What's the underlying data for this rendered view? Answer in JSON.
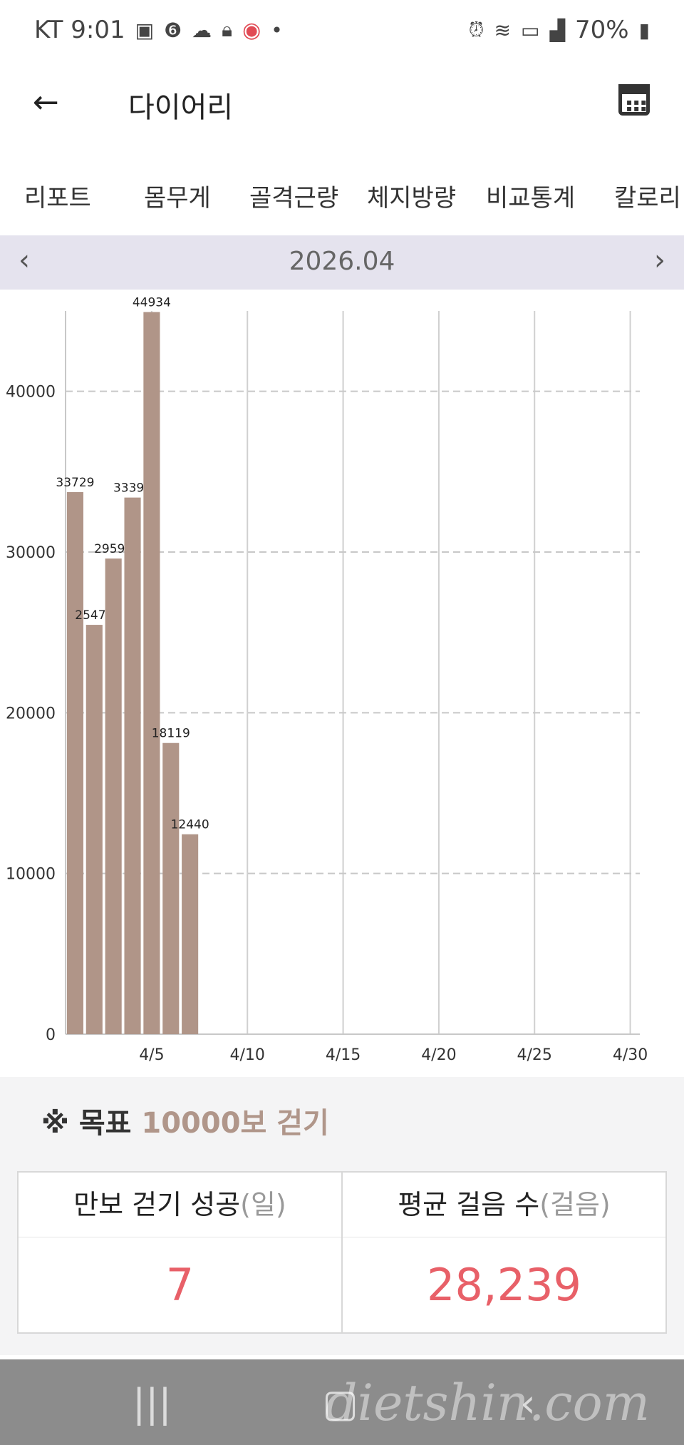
{
  "status": {
    "carrier_time": "KT 9:01",
    "battery": "70%"
  },
  "appbar": {
    "title": "다이어리"
  },
  "tabs": [
    "리포트",
    "몸무게",
    "골격근량",
    "체지방량",
    "비교통계",
    "칼로리"
  ],
  "month": {
    "label": "2026.04"
  },
  "chart_data": {
    "type": "bar",
    "x": [
      1,
      2,
      3,
      4,
      5,
      6,
      7
    ],
    "values": [
      33729,
      25470,
      29594,
      33390,
      44934,
      18119,
      12440
    ],
    "data_labels": [
      "33729",
      "25470",
      "29594",
      "33390",
      "44934",
      "18119",
      "12440"
    ],
    "xlim": [
      0.5,
      30.5
    ],
    "x_ticks": [
      5,
      10,
      15,
      20,
      25,
      30
    ],
    "x_tick_labels": [
      "4/5",
      "4/10",
      "4/15",
      "4/20",
      "4/25",
      "4/30"
    ],
    "ylim": [
      0,
      45000
    ],
    "y_ticks": [
      0,
      10000,
      20000,
      30000,
      40000
    ],
    "y_tick_labels": [
      "0",
      "10000",
      "20000",
      "30000",
      "40000"
    ],
    "bar_color": "#b09588",
    "grid": true
  },
  "goal": {
    "mark": "※",
    "label": "목표",
    "value": "10000보 걷기"
  },
  "summary": {
    "success_label": "만보 걷기 성공",
    "success_unit": "(일)",
    "success_value": "7",
    "avg_label": "평균 걸음 수",
    "avg_unit": "(걸음)",
    "avg_value": "28,239"
  },
  "watermark": "dietshin.com",
  "colors": {
    "accent_value": "#e86068",
    "goal_value": "#b0968a",
    "month_bar_bg": "#e5e3ee",
    "nav_bg": "#8c8c8c"
  }
}
